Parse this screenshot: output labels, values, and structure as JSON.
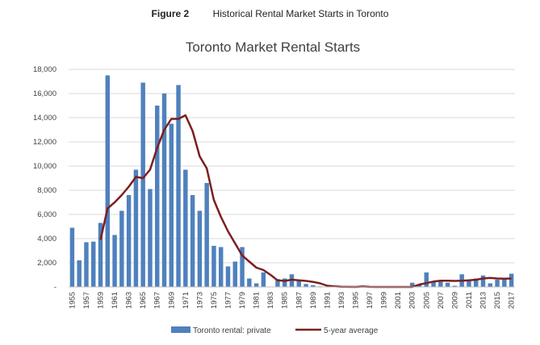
{
  "figure": {
    "number": "Figure 2",
    "caption": "Historical Rental Market Starts in Toronto"
  },
  "chart_data": {
    "type": "bar",
    "title": "Toronto Market Rental Starts",
    "xlabel": "",
    "ylabel": "",
    "ylim": [
      0,
      18000
    ],
    "yticks": [
      {
        "value": 0,
        "label": "-"
      },
      {
        "value": 2000,
        "label": "2,000"
      },
      {
        "value": 4000,
        "label": "4,000"
      },
      {
        "value": 6000,
        "label": "6,000"
      },
      {
        "value": 8000,
        "label": "8,000"
      },
      {
        "value": 10000,
        "label": "10,000"
      },
      {
        "value": 12000,
        "label": "12,000"
      },
      {
        "value": 14000,
        "label": "14,000"
      },
      {
        "value": 16000,
        "label": "16,000"
      },
      {
        "value": 18000,
        "label": "18,000"
      }
    ],
    "grid": true,
    "legend_position": "bottom",
    "categories": [
      "1955",
      "1956",
      "1957",
      "1958",
      "1959",
      "1960",
      "1961",
      "1962",
      "1963",
      "1964",
      "1965",
      "1966",
      "1967",
      "1968",
      "1969",
      "1970",
      "1971",
      "1972",
      "1973",
      "1974",
      "1975",
      "1976",
      "1977",
      "1978",
      "1979",
      "1980",
      "1981",
      "1982",
      "1983",
      "1984",
      "1985",
      "1986",
      "1987",
      "1988",
      "1989",
      "1990",
      "1991",
      "1992",
      "1993",
      "1994",
      "1995",
      "1996",
      "1997",
      "1998",
      "1999",
      "2000",
      "2001",
      "2002",
      "2003",
      "2004",
      "2005",
      "2006",
      "2007",
      "2008",
      "2009",
      "2010",
      "2011",
      "2012",
      "2013",
      "2014",
      "2015",
      "2016",
      "2017"
    ],
    "xtick_labels": [
      "1955",
      "1957",
      "1959",
      "1961",
      "1963",
      "1965",
      "1967",
      "1969",
      "1971",
      "1973",
      "1975",
      "1977",
      "1979",
      "1981",
      "1983",
      "1985",
      "1987",
      "1989",
      "1991",
      "1993",
      "1995",
      "1997",
      "1999",
      "2001",
      "2003",
      "2005",
      "2007",
      "2009",
      "2011",
      "2013",
      "2015",
      "2017"
    ],
    "series": [
      {
        "name": "Toronto rental: private",
        "type": "bar",
        "color": "#4f81bd",
        "values": [
          4900,
          2200,
          3700,
          3750,
          5300,
          17500,
          4300,
          6300,
          7600,
          9700,
          16900,
          8100,
          15000,
          16000,
          13500,
          16700,
          9700,
          7600,
          6300,
          8600,
          3400,
          3300,
          1700,
          2100,
          3300,
          700,
          300,
          1200,
          0,
          650,
          700,
          1050,
          550,
          250,
          150,
          50,
          0,
          0,
          0,
          0,
          0,
          0,
          0,
          0,
          0,
          0,
          0,
          0,
          350,
          200,
          1200,
          400,
          500,
          350,
          100,
          1050,
          500,
          700,
          950,
          300,
          600,
          650,
          1100
        ]
      },
      {
        "name": "5-year average",
        "type": "line",
        "color": "#7b1f1f",
        "values": [
          null,
          null,
          null,
          null,
          3900,
          6500,
          7000,
          7600,
          8300,
          9100,
          9000,
          9700,
          11500,
          13000,
          13900,
          13900,
          14200,
          12900,
          10800,
          9800,
          7200,
          5800,
          4600,
          3600,
          2600,
          2100,
          1600,
          1400,
          1000,
          550,
          500,
          600,
          550,
          500,
          420,
          300,
          100,
          50,
          20,
          10,
          0,
          40,
          10,
          0,
          0,
          0,
          0,
          0,
          0,
          200,
          320,
          450,
          520,
          520,
          500,
          520,
          550,
          600,
          700,
          750,
          700,
          680,
          700
        ]
      }
    ]
  }
}
